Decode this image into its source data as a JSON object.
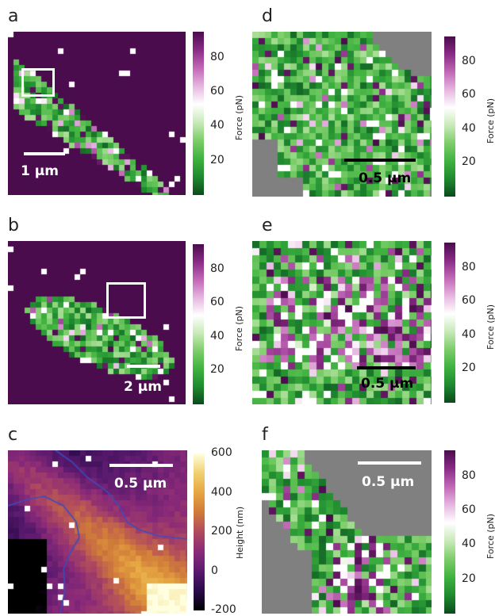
{
  "panels": {
    "a": {
      "letter": "a",
      "scale_label": "1 μm",
      "scale_color": "#ffffff"
    },
    "b": {
      "letter": "b",
      "scale_label": "2 μm",
      "scale_color": "#ffffff"
    },
    "c": {
      "letter": "c",
      "scale_label": "0.5 μm",
      "scale_color": "#ffffff"
    },
    "d": {
      "letter": "d",
      "scale_label": "0.5 μm",
      "scale_color": "#000000"
    },
    "e": {
      "letter": "e",
      "scale_label": "0.5 μm",
      "scale_color": "#000000"
    },
    "f": {
      "letter": "f",
      "scale_label": "0.5 μm",
      "scale_color": "#ffffff"
    }
  },
  "force_colorbar": {
    "label": "Force (pN)",
    "ticks": [
      "80",
      "60",
      "40",
      "20"
    ],
    "tick_values": [
      80,
      60,
      40,
      20
    ],
    "range": [
      0,
      95
    ],
    "colors": [
      "#0b4a1c",
      "#1f8a30",
      "#3fb23f",
      "#7ccd6a",
      "#c8eab7",
      "#ffffff",
      "#e6b6e0",
      "#c168b6",
      "#8a2b86",
      "#4a0c4c"
    ]
  },
  "height_colorbar": {
    "label": "Height (nm)",
    "ticks": [
      "600",
      "400",
      "200",
      "0",
      "-200"
    ],
    "tick_values": [
      600,
      400,
      200,
      0,
      -200
    ],
    "range": [
      -200,
      600
    ],
    "colors": [
      "#000000",
      "#2a0a4a",
      "#5a1a6e",
      "#8a2a78",
      "#b04a5e",
      "#d07a3a",
      "#e6a640",
      "#f0d070",
      "#ffffe0"
    ]
  },
  "chart_data": [
    {
      "type": "heatmap",
      "panel": "a",
      "quantity": "Force (pN)",
      "zlim": [
        0,
        95
      ],
      "background": "#4a0c4c"
    },
    {
      "type": "heatmap",
      "panel": "b",
      "quantity": "Force (pN)",
      "zlim": [
        0,
        95
      ],
      "background": "#4a0c4c"
    },
    {
      "type": "heatmap",
      "panel": "c",
      "quantity": "Height (nm)",
      "zlim": [
        -200,
        600
      ]
    },
    {
      "type": "heatmap",
      "panel": "d",
      "quantity": "Force (pN)",
      "zlim": [
        0,
        95
      ],
      "background": "#808080"
    },
    {
      "type": "heatmap",
      "panel": "e",
      "quantity": "Force (pN)",
      "zlim": [
        0,
        95
      ],
      "background": "#808080"
    },
    {
      "type": "heatmap",
      "panel": "f",
      "quantity": "Force (pN)",
      "zlim": [
        0,
        95
      ],
      "background": "#808080"
    }
  ]
}
